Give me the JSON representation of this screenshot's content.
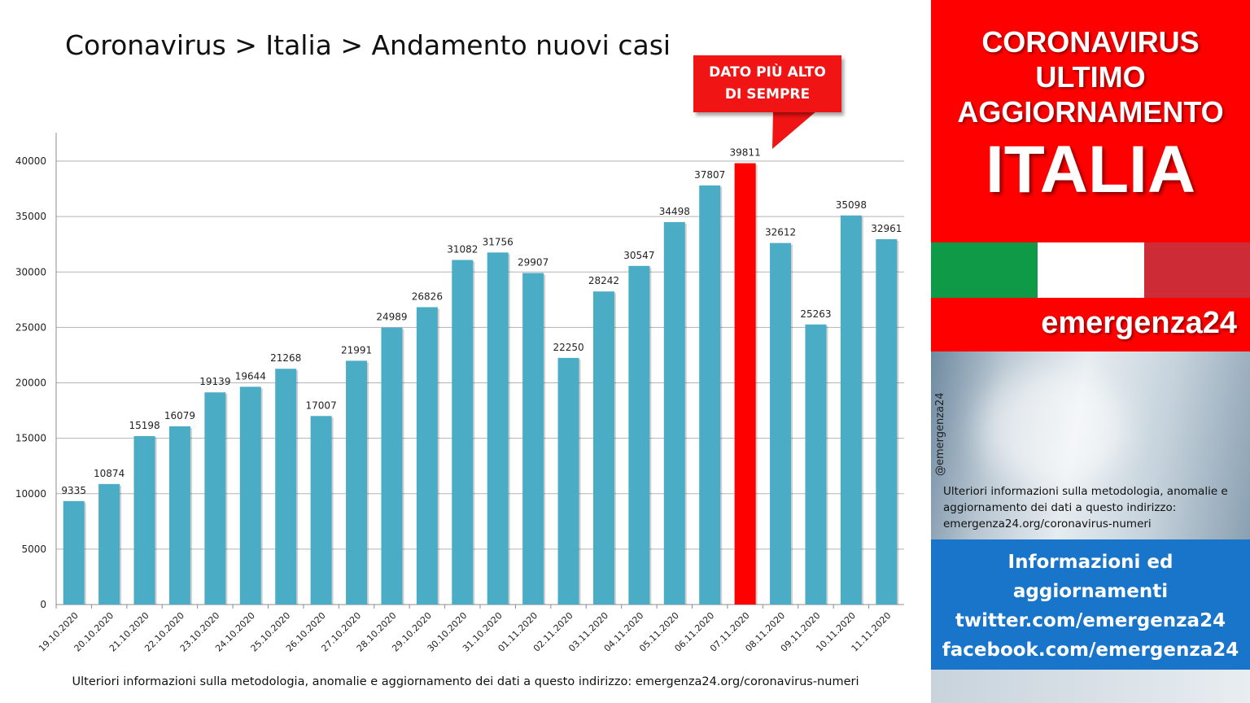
{
  "page_title": "Coronavirus > Italia > Andamento nuovi casi",
  "callout": {
    "line1": "DATO PIÙ ALTO",
    "line2": "DI SEMPRE"
  },
  "footer_note": "Ulteriori informazioni sulla metodologia, anomalie e aggiornamento dei dati a questo indirizzo: emergenza24.org/coronavirus-numeri",
  "colors": {
    "bar": "#4bacc6",
    "highlight_bar": "#ff0000",
    "banner": "#ff0000",
    "info_box": "#1875c9"
  },
  "banner": {
    "line1": "CORONAVIRUS",
    "line2": "ULTIMO",
    "line3": "AGGIORNAMENTO",
    "line4": "ITALIA"
  },
  "brand": "emergenza24",
  "handle": "@emergenza24",
  "side_note": "Ulteriori informazioni sulla metodologia, anomalie e aggiornamento dei dati a questo indirizzo: emergenza24.org/coronavirus-numeri",
  "info": {
    "line1": "Informazioni ed",
    "line2": "aggiornamenti",
    "line3": "twitter.com/emergenza24",
    "line4": "facebook.com/emergenza24"
  },
  "chart_data": {
    "type": "bar",
    "title": "",
    "xlabel": "",
    "ylabel": "",
    "ylim": [
      0,
      40000
    ],
    "yticks": [
      0,
      5000,
      10000,
      15000,
      20000,
      25000,
      30000,
      35000,
      40000
    ],
    "grid": true,
    "categories": [
      "19.10.2020",
      "20.10.2020",
      "21.10.2020",
      "22.10.2020",
      "23.10.2020",
      "24.10.2020",
      "25.10.2020",
      "26.10.2020",
      "27.10.2020",
      "28.10.2020",
      "29.10.2020",
      "30.10.2020",
      "31.10.2020",
      "01.11.2020",
      "02.11.2020",
      "03.11.2020",
      "04.11.2020",
      "05.11.2020",
      "06.11.2020",
      "07.11.2020",
      "08.11.2020",
      "09.11.2020",
      "10.11.2020",
      "11.11.2020"
    ],
    "values": [
      9335,
      10874,
      15198,
      16079,
      19139,
      19644,
      21268,
      17007,
      21991,
      24989,
      26826,
      31082,
      31756,
      29907,
      22250,
      28242,
      30547,
      34498,
      37807,
      39811,
      32612,
      25263,
      35098,
      32961
    ],
    "highlight": "07.11.2020"
  }
}
